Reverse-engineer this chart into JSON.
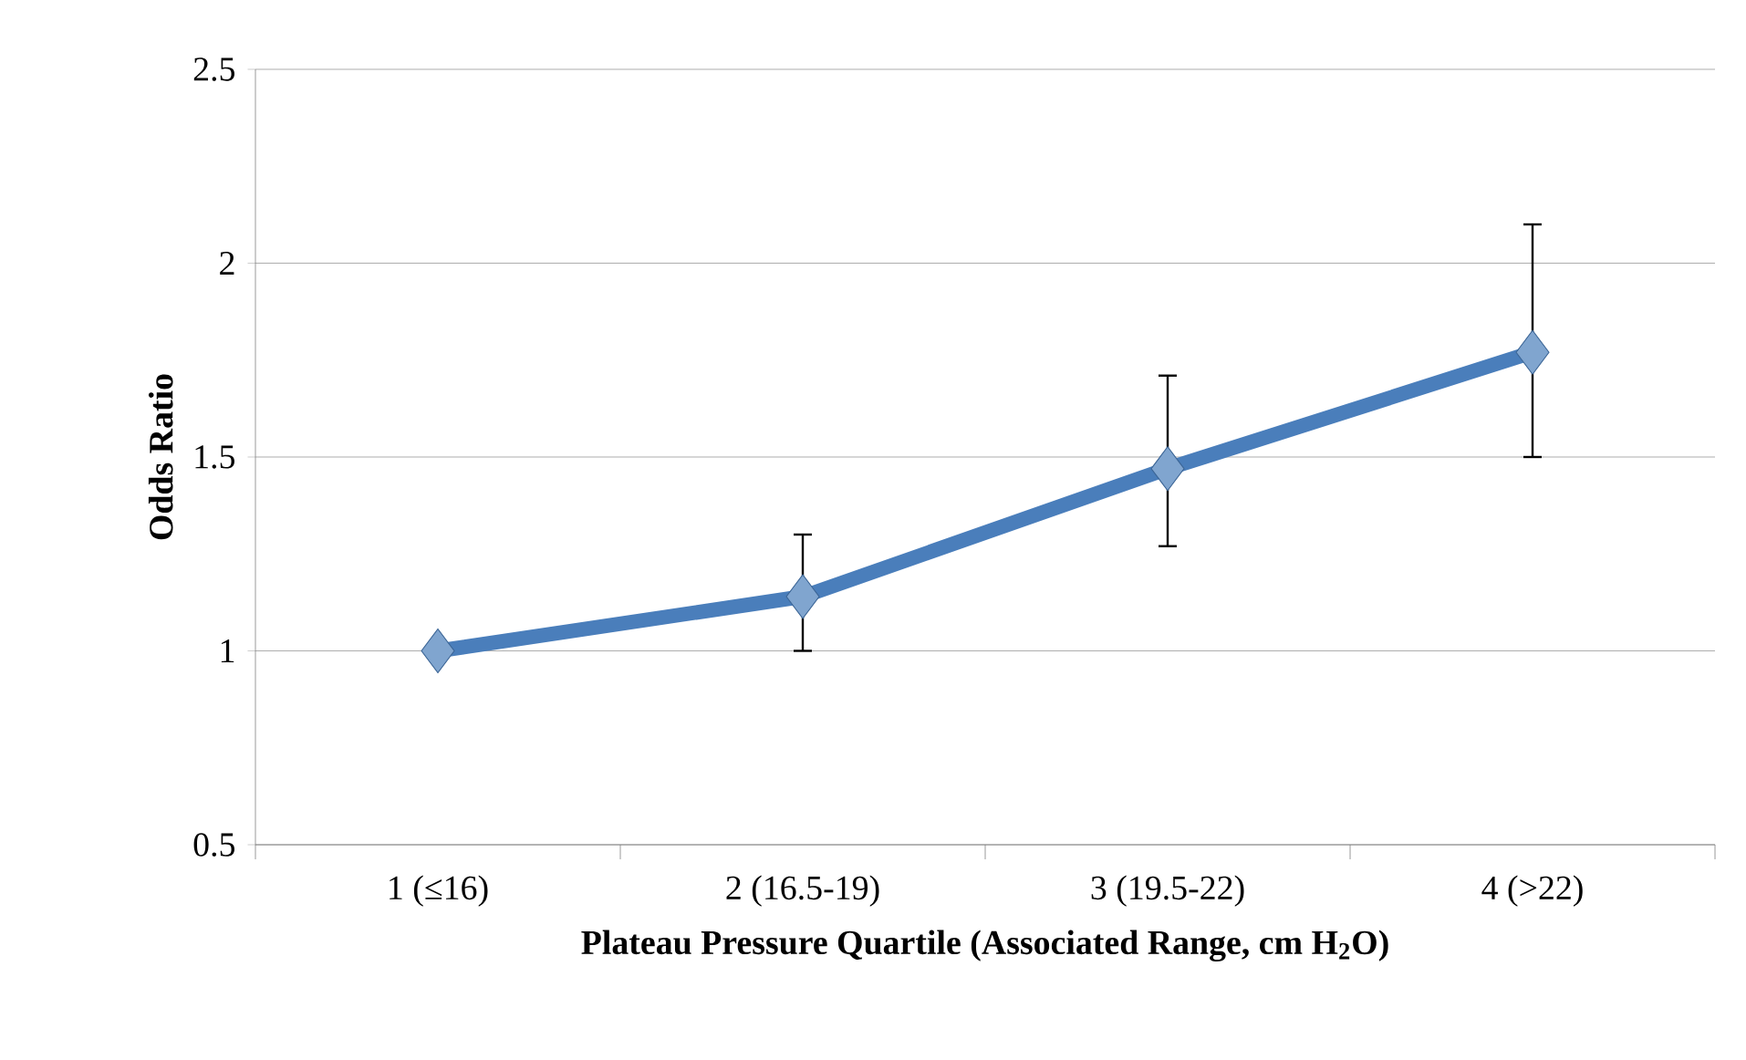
{
  "chart_data": {
    "type": "line",
    "xlabel": "Plateau Pressure Quartile (Associated Range, cm H$_{2}$O)",
    "ylabel": "Odds Ratio",
    "categories": [
      "1 (≤16)",
      "2 (16.5-19)",
      "3 (19.5-22)",
      "4 (>22)"
    ],
    "values": [
      1.0,
      1.14,
      1.47,
      1.77
    ],
    "errors": [
      null,
      [
        1.0,
        1.3
      ],
      [
        1.27,
        1.71
      ],
      [
        1.5,
        2.1
      ]
    ],
    "color": "#4a7ebb",
    "marker": "diamond",
    "line_style": "solid",
    "ylim": [
      0.5,
      2.5
    ],
    "yticks": [
      0.5,
      1,
      1.5,
      2,
      2.5
    ],
    "grid": "y"
  }
}
